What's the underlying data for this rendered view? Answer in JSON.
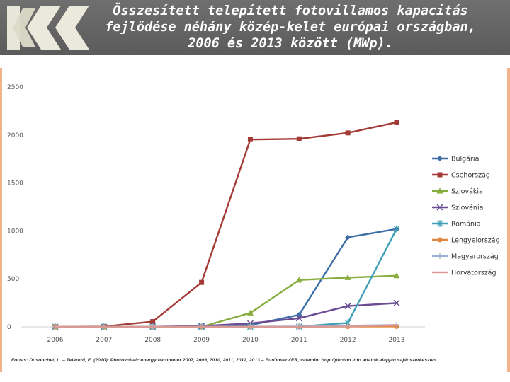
{
  "slide": {
    "title_lines": [
      "Összesített telepített fotovillamos kapacitás",
      "fejlődése néhány közép-kelet európai országban,",
      "2006 és 2013 között (MWp)."
    ],
    "source": "Forrás: Dusonchet, L. – Telaretti, E. (2010); Photovoltaic energy barometer 2007, 2009, 2010, 2011, 2012, 2013 – EurObserv'ER, valamint http://photon.info adatok alapján saját szerkesztés"
  },
  "colors": {
    "header_bg": "#666666",
    "panel_edge": "#f2b38a",
    "Bulgária": "#3e6ea7",
    "Csehország": "#a33a36",
    "Szlovákia": "#86ad3e",
    "Szlovénia": "#6b4c93",
    "Románia": "#3e9fb7",
    "Lengyelország": "#e3873e",
    "Magyarország": "#98b2d6",
    "Horvátország": "#d99a96"
  },
  "chart_data": {
    "type": "line",
    "title": "",
    "xlabel": "",
    "ylabel": "",
    "categories": [
      "2006",
      "2007",
      "2008",
      "2009",
      "2010",
      "2011",
      "2012",
      "2013"
    ],
    "ylim": [
      0,
      2500
    ],
    "yticks": [
      0,
      500,
      1000,
      1500,
      2000,
      2500
    ],
    "grid": false,
    "legend_position": "right",
    "series": [
      {
        "name": "Bulgária",
        "marker": "diamond",
        "values": [
          0,
          0,
          1,
          6,
          18,
          125,
          933,
          1020
        ]
      },
      {
        "name": "Csehország",
        "marker": "square",
        "values": [
          1,
          4,
          55,
          463,
          1953,
          1960,
          2022,
          2132
        ]
      },
      {
        "name": "Szlovákia",
        "marker": "triangle",
        "values": [
          0,
          0,
          0,
          0,
          145,
          488,
          513,
          533
        ]
      },
      {
        "name": "Szlovénia",
        "marker": "x",
        "values": [
          0,
          1,
          2,
          9,
          36,
          90,
          217,
          248
        ]
      },
      {
        "name": "Románia",
        "marker": "star",
        "values": [
          0,
          0,
          0,
          1,
          2,
          3,
          41,
          1022
        ]
      },
      {
        "name": "Lengyelország",
        "marker": "circle",
        "values": [
          0,
          0,
          1,
          1,
          2,
          2,
          3,
          4
        ]
      },
      {
        "name": "Magyarország",
        "marker": "plus",
        "values": [
          0,
          0,
          1,
          1,
          2,
          4,
          12,
          20
        ]
      },
      {
        "name": "Horvátország",
        "marker": "none",
        "values": [
          0,
          0,
          0,
          0,
          0,
          0,
          4,
          19
        ]
      }
    ]
  }
}
